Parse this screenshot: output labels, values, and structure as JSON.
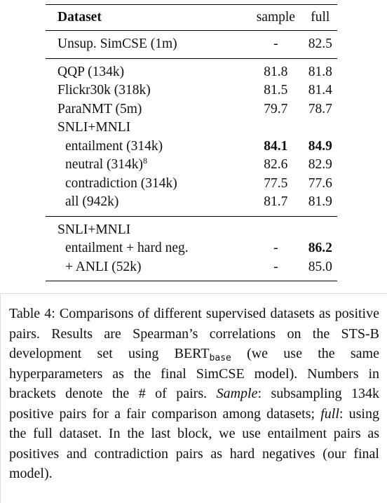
{
  "table": {
    "header": [
      "Dataset",
      "sample",
      "full"
    ],
    "groups": [
      {
        "rows": [
          {
            "cells": [
              "Unsup. SimCSE (1m)",
              "-",
              "82.5"
            ]
          }
        ]
      },
      {
        "rows": [
          {
            "cells": [
              "QQP (134k)",
              "81.8",
              "81.8"
            ]
          },
          {
            "cells": [
              "Flickr30k (318k)",
              "81.5",
              "81.4"
            ]
          },
          {
            "cells": [
              "ParaNMT (5m)",
              "79.7",
              "78.7"
            ]
          },
          {
            "cells": [
              "SNLI+MNLI"
            ]
          },
          {
            "cells": [
              "entailment (314k)",
              "84.1",
              "84.9"
            ],
            "indent": true,
            "bold": [
              false,
              true,
              true
            ]
          },
          {
            "cells": [
              "neutral (314k)",
              "82.6",
              "82.9"
            ],
            "indent": true,
            "note": "8"
          },
          {
            "cells": [
              "contradiction (314k)",
              "77.5",
              "77.6"
            ],
            "indent": true
          },
          {
            "cells": [
              "all (942k)",
              "81.7",
              "81.9"
            ],
            "indent": true
          }
        ]
      },
      {
        "rows": [
          {
            "cells": [
              "SNLI+MNLI"
            ]
          },
          {
            "cells": [
              "entailment + hard neg.",
              "-",
              "86.2"
            ],
            "indent": true,
            "bold": [
              false,
              false,
              true
            ]
          },
          {
            "cells": [
              "+ ANLI (52k)",
              "-",
              "85.0"
            ],
            "indent": true
          }
        ]
      }
    ]
  },
  "caption": {
    "parts": [
      {
        "text": "Table 4: Comparisons of different supervised datasets as positive pairs. Results are Spearman’s correlations on the STS-B development set using BERT"
      },
      {
        "text": "base",
        "style": "sub"
      },
      {
        "text": " (we use the same hyperparameters as the final SimCSE model). Numbers in brackets denote the # of pairs. "
      },
      {
        "text": "Sample",
        "style": "italic"
      },
      {
        "text": ": subsampling 134k positive pairs for a fair comparison among datasets; "
      },
      {
        "text": "full",
        "style": "italic"
      },
      {
        "text": ": using the full dataset. In the last block, we use entailment pairs as positives and contradiction pairs as hard negatives (our final model)."
      }
    ]
  }
}
